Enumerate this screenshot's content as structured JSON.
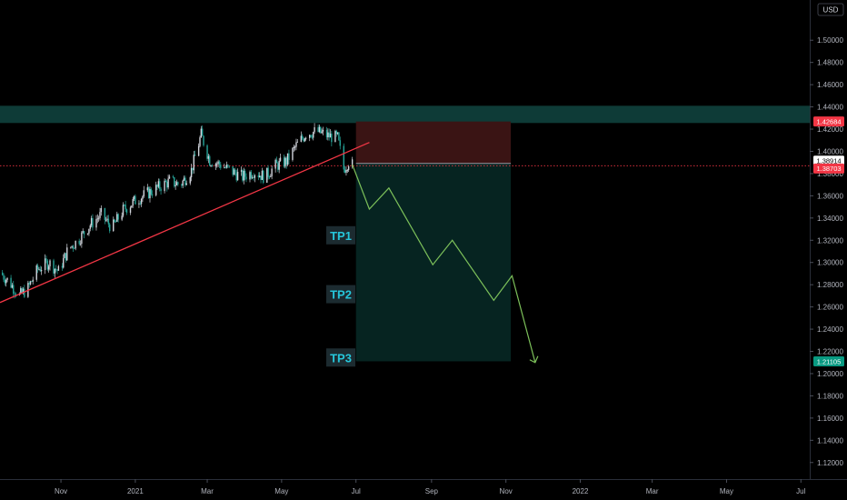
{
  "chart_data": {
    "type": "candlestick",
    "currency_label": "USD",
    "y_axis": {
      "min": 1.11,
      "max": 1.528,
      "ticks": [
        "1.12000",
        "1.14000",
        "1.16000",
        "1.18000",
        "1.20000",
        "1.22000",
        "1.24000",
        "1.26000",
        "1.28000",
        "1.30000",
        "1.32000",
        "1.34000",
        "1.36000",
        "1.38000",
        "1.40000",
        "1.42000",
        "1.44000",
        "1.46000",
        "1.48000",
        "1.50000"
      ],
      "tick_values": [
        1.12,
        1.14,
        1.16,
        1.18,
        1.2,
        1.22,
        1.24,
        1.26,
        1.28,
        1.3,
        1.32,
        1.34,
        1.36,
        1.38,
        1.4,
        1.42,
        1.44,
        1.46,
        1.48,
        1.5
      ]
    },
    "x_axis": {
      "labels": [
        "Nov",
        "2021",
        "Mar",
        "May",
        "Jul",
        "Sep",
        "Nov",
        "2022",
        "Mar",
        "May",
        "Jul"
      ],
      "label_dates": [
        "2020-11-01",
        "2021-01-01",
        "2021-03-01",
        "2021-05-01",
        "2021-07-01",
        "2021-09-01",
        "2021-11-01",
        "2022-01-01",
        "2022-03-01",
        "2022-05-01",
        "2022-07-01"
      ],
      "range": [
        "2020-09-12",
        "2022-07-06"
      ]
    },
    "price_tags": [
      {
        "label": "1.42684",
        "value": 1.42684,
        "color": "#f23645"
      },
      {
        "label": "1.38914",
        "value": 1.38914,
        "color": "#ffffff"
      },
      {
        "label": "1.38703",
        "value": 1.38703,
        "color": "#f23645"
      },
      {
        "label": "1.21105",
        "value": 1.21105,
        "color": "#089981"
      }
    ],
    "resistance_zone": {
      "low": 1.4255,
      "high": 1.441,
      "color": "#0e3b37"
    },
    "trendline": {
      "start": [
        "2020-09-12",
        1.264
      ],
      "end": [
        "2021-07-12",
        1.408
      ],
      "color": "#f23645"
    },
    "short_position": {
      "start_date": "2021-07-01",
      "end_date": "2021-11-05",
      "entry": 1.38914,
      "stop": 1.42684,
      "target": 1.21105,
      "stop_color": "#3a1414",
      "target_color": "#062421"
    },
    "projection": {
      "color": "#7cc05a",
      "points": [
        [
          "2021-06-28",
          1.388
        ],
        [
          "2021-07-12",
          1.348
        ],
        [
          "2021-07-28",
          1.367
        ],
        [
          "2021-09-02",
          1.298
        ],
        [
          "2021-09-18",
          1.32
        ],
        [
          "2021-10-22",
          1.266
        ],
        [
          "2021-11-06",
          1.288
        ],
        [
          "2021-11-25",
          1.21
        ]
      ]
    },
    "take_profits": [
      {
        "label": "TP1",
        "value": 1.3245
      },
      {
        "label": "TP2",
        "value": 1.2715
      },
      {
        "label": "TP3",
        "value": 1.2145
      }
    ],
    "candles_close_path": [
      [
        "2020-09-12",
        1.291
      ],
      [
        "2020-09-20",
        1.282
      ],
      [
        "2020-09-28",
        1.27
      ],
      [
        "2020-10-05",
        1.277
      ],
      [
        "2020-10-13",
        1.294
      ],
      [
        "2020-10-22",
        1.3
      ],
      [
        "2020-10-30",
        1.292
      ],
      [
        "2020-11-07",
        1.312
      ],
      [
        "2020-11-15",
        1.32
      ],
      [
        "2020-11-25",
        1.334
      ],
      [
        "2020-12-04",
        1.343
      ],
      [
        "2020-12-13",
        1.331
      ],
      [
        "2020-12-22",
        1.347
      ],
      [
        "2020-12-31",
        1.355
      ],
      [
        "2021-01-09",
        1.361
      ],
      [
        "2021-01-19",
        1.367
      ],
      [
        "2021-01-29",
        1.373
      ],
      [
        "2021-02-07",
        1.37
      ],
      [
        "2021-02-16",
        1.383
      ],
      [
        "2021-02-24",
        1.415
      ],
      [
        "2021-03-03",
        1.392
      ],
      [
        "2021-03-12",
        1.388
      ],
      [
        "2021-03-21",
        1.382
      ],
      [
        "2021-03-30",
        1.377
      ],
      [
        "2021-04-08",
        1.382
      ],
      [
        "2021-04-17",
        1.377
      ],
      [
        "2021-04-26",
        1.387
      ],
      [
        "2021-05-05",
        1.391
      ],
      [
        "2021-05-13",
        1.405
      ],
      [
        "2021-05-21",
        1.416
      ],
      [
        "2021-05-30",
        1.418
      ],
      [
        "2021-06-08",
        1.414
      ],
      [
        "2021-06-16",
        1.412
      ],
      [
        "2021-06-21",
        1.384
      ],
      [
        "2021-06-25",
        1.391
      ],
      [
        "2021-06-28",
        1.388
      ]
    ]
  }
}
